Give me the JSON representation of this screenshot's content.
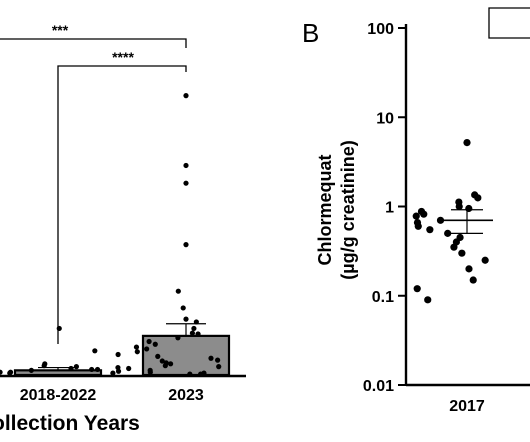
{
  "chart_data": [
    {
      "type": "bar",
      "panel_label": "",
      "xlabel": "ollection Years",
      "categories": [
        "2018-2022",
        "2023"
      ],
      "values": [
        0.05,
        0.42
      ],
      "error_upper": [
        0.08,
        0.55
      ],
      "bar_colors": [
        "#8c8c8c",
        "#8c8c8c"
      ],
      "ylim": [
        0,
        3.2
      ],
      "significance": [
        {
          "pair": [
            "left-of-view",
            "2023"
          ],
          "label": "***"
        },
        {
          "pair": [
            "2018-2022",
            "2023"
          ],
          "label": "****"
        }
      ],
      "points": [
        {
          "category": "2018-2022",
          "values": [
            0.01,
            0.02,
            0.02,
            0.03,
            0.03,
            0.04,
            0.05,
            0.06,
            0.07,
            0.09,
            0.1,
            0.12,
            0.5
          ]
        },
        {
          "category": "2023",
          "values": [
            3.0,
            2.25,
            2.06,
            1.4,
            0.9,
            0.72,
            0.6,
            0.57,
            0.5,
            0.45,
            0.44,
            0.4,
            0.36,
            0.33,
            0.3,
            0.28,
            0.26,
            0.25,
            0.22,
            0.2,
            0.18,
            0.16,
            0.15,
            0.13,
            0.12,
            0.1,
            0.09,
            0.08,
            0.07,
            0.06,
            0.05,
            0.04,
            0.03,
            0.02,
            0.02,
            0.01,
            0.01
          ]
        }
      ]
    },
    {
      "type": "scatter",
      "panel_label": "B",
      "ylabel_line1": "Chlormequat",
      "ylabel_line2": "(µg/g creatinine)",
      "yscale": "log",
      "ylim": [
        0.01,
        100
      ],
      "yticks": [
        "0.01",
        "0.1",
        "1",
        "10",
        "100"
      ],
      "categories": [
        "2017"
      ],
      "center": [
        0.7
      ],
      "ci": [
        [
          0.5,
          0.92
        ]
      ],
      "points": [
        {
          "category": "2017",
          "values": [
            5.2,
            1.35,
            1.25,
            1.12,
            1.0,
            0.95,
            0.88,
            0.82,
            0.78,
            0.7,
            0.66,
            0.6,
            0.55,
            0.5,
            0.45,
            0.4,
            0.35,
            0.3,
            0.25,
            0.2,
            0.15,
            0.12,
            0.09
          ]
        }
      ]
    }
  ]
}
